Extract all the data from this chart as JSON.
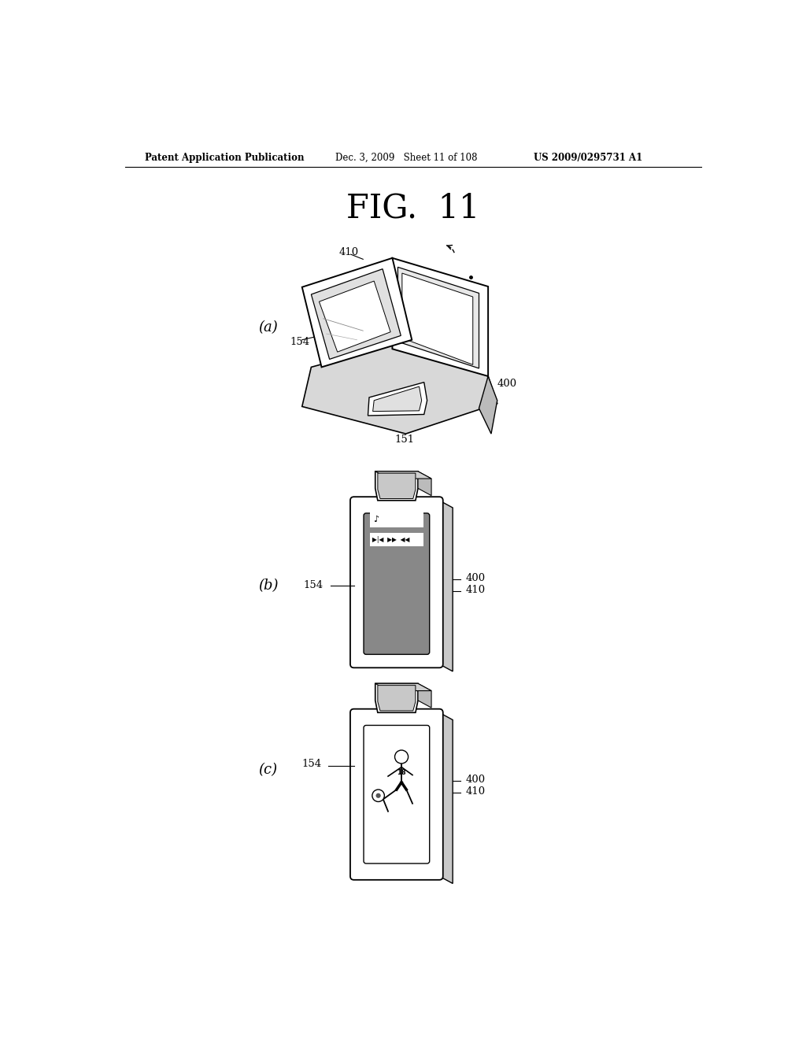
{
  "title": "FIG.  11",
  "header_left": "Patent Application Publication",
  "header_mid": "Dec. 3, 2009   Sheet 11 of 108",
  "header_right": "US 2009/0295731 A1",
  "bg_color": "#ffffff",
  "text_color": "#000000",
  "label_a": "(a)",
  "label_b": "(b)",
  "label_c": "(c)",
  "ref_410_a": "410",
  "ref_154_a": "154",
  "ref_400_a": "400",
  "ref_151_a": "151",
  "ref_154_b": "154",
  "ref_400_b": "400",
  "ref_410_b": "410",
  "ref_154_c": "154",
  "ref_400_c": "400",
  "ref_410_c": "410",
  "gray_light": "#c8c8c8",
  "gray_screen": "#888888",
  "gray_dark": "#555555"
}
